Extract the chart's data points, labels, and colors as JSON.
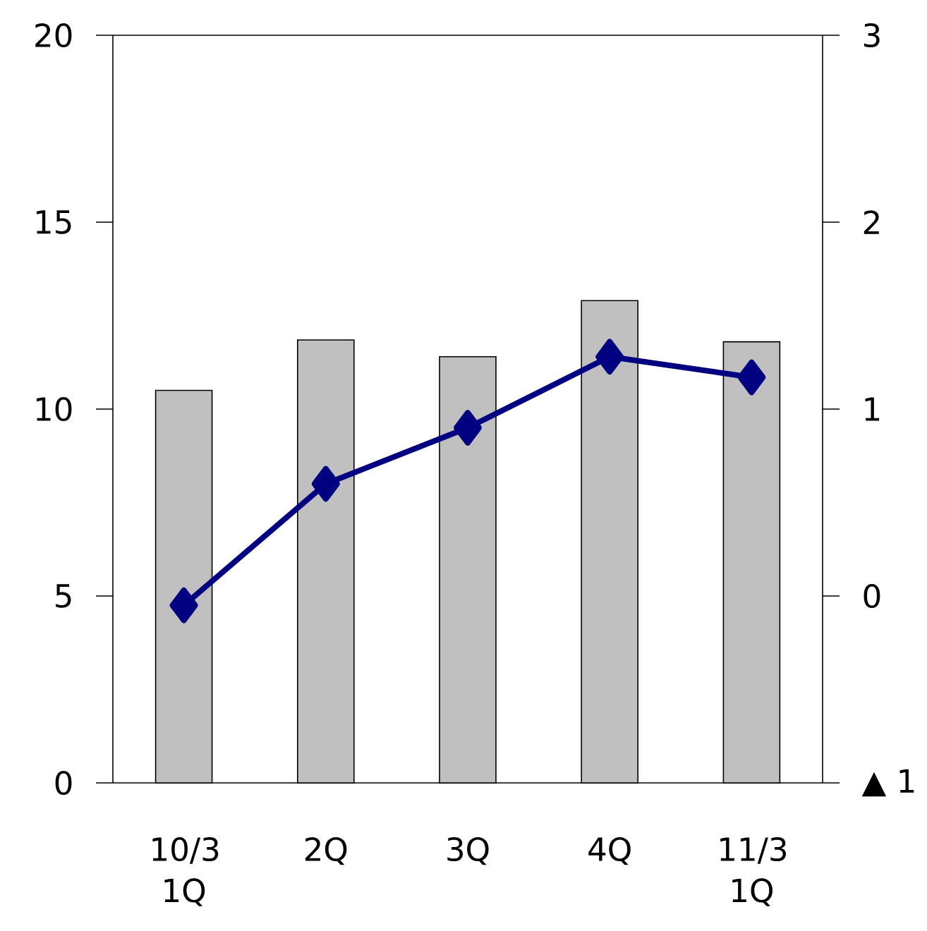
{
  "chart_data": {
    "type": "bar",
    "categories": [
      "10/3 1Q",
      "2Q",
      "3Q",
      "4Q",
      "11/3 1Q"
    ],
    "series": [
      {
        "color": "#c0c0c0",
        "values": [
          10.5,
          11.85,
          11.4,
          12.9,
          11.8
        ]
      },
      {
        "type": "line",
        "axis": "y2",
        "color": "#000080",
        "values": [
          -0.05,
          0.6,
          0.9,
          1.28,
          1.17
        ]
      }
    ],
    "marker": "diamond",
    "line_style": "solid",
    "ylim": [
      0,
      20
    ],
    "yticks": [
      0,
      5,
      10,
      15,
      20
    ],
    "y2lim": [
      -1,
      3
    ],
    "y2ticks": [
      {
        "value": -1,
        "label": "▲ 1"
      },
      0,
      1,
      2,
      3
    ]
  }
}
